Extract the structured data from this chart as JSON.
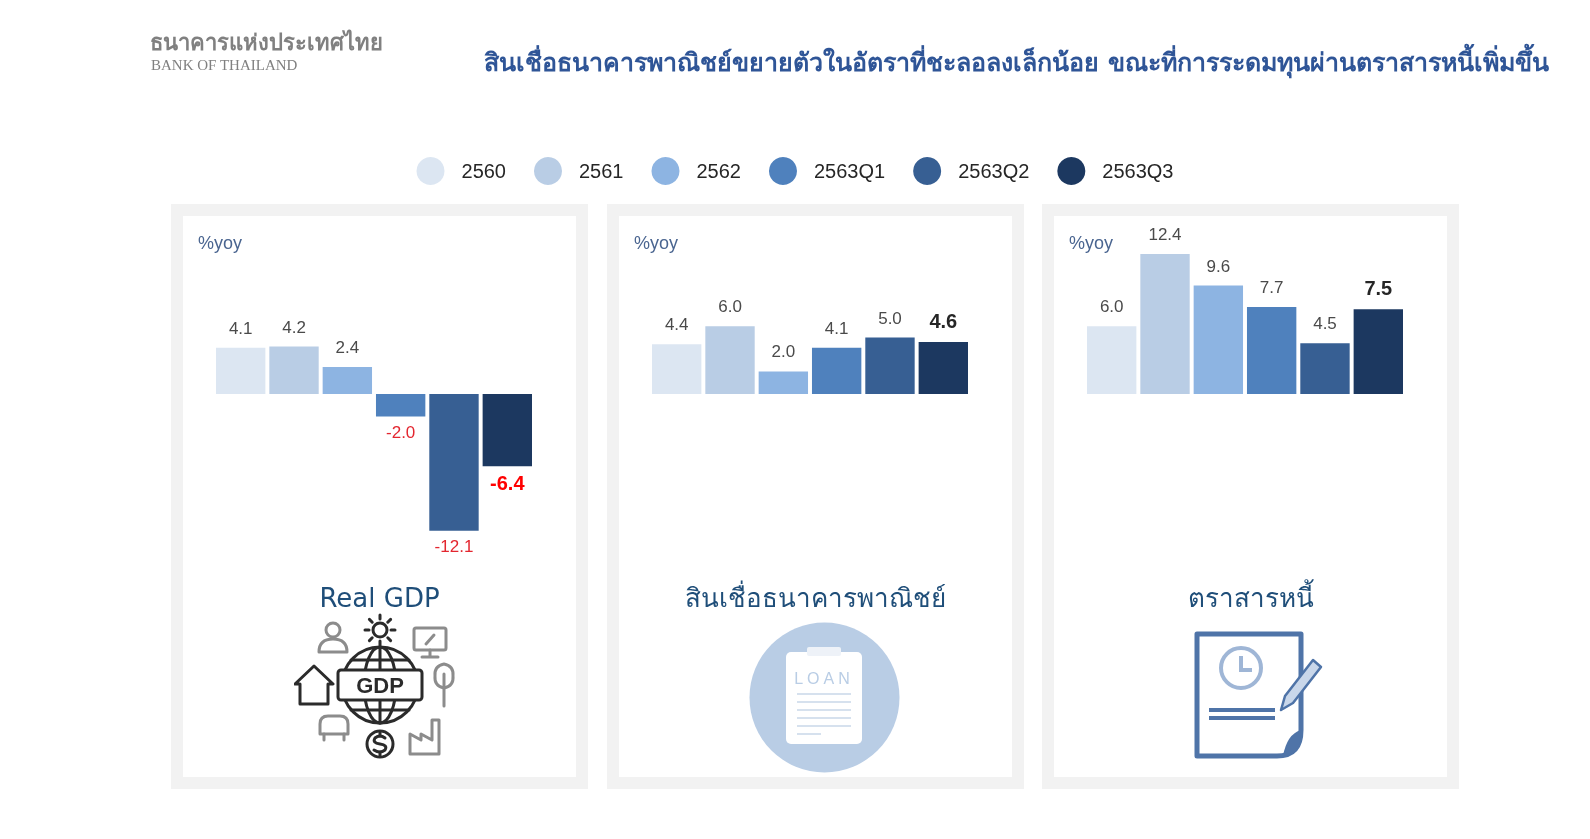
{
  "chart_data": [
    {
      "type": "bar",
      "title": "Real GDP",
      "ylabel": "%yoy",
      "legend": "top",
      "tick_labels": false,
      "categories": [
        null
      ],
      "series": [
        {
          "name": "2560",
          "color": "#dce6f2",
          "values": [
            4.1
          ],
          "value_labels": [
            "4.1"
          ]
        },
        {
          "name": "2561",
          "color": "#b9cde5",
          "values": [
            4.2
          ],
          "value_labels": [
            "4.2"
          ]
        },
        {
          "name": "2562",
          "color": "#8db4e2",
          "values": [
            2.4
          ],
          "value_labels": [
            "2.4"
          ]
        },
        {
          "name": "2563Q1",
          "color": "#4f81bd",
          "values": [
            -2.0
          ],
          "value_labels": [
            "-2.0"
          ]
        },
        {
          "name": "2563Q2",
          "color": "#375f93",
          "values": [
            -12.1
          ],
          "value_labels": [
            "-12.1"
          ]
        },
        {
          "name": "2563Q3",
          "color": "#1c3860",
          "values": [
            -6.4
          ],
          "value_labels": [
            "-6.4"
          ]
        }
      ],
      "annotations": [
        "ธนาคารแห่งประเทศไทย",
        "BANK OF THAILAND",
        "สินเชื่อธนาคารพาณิชย์ขยายตัวในอัตราที่ชะลอลงเล็กน้อย ขณะที่การระดมทุนผ่านตราสารหนี้เพิ่มขึ้น",
        "GDP"
      ]
    },
    {
      "type": "bar",
      "title": "สินเชื่อธนาคารพาณิชย์",
      "ylabel": "%yoy",
      "tick_labels": false,
      "categories": [
        null
      ],
      "series": [
        {
          "name": "2560",
          "color": "#dce6f2",
          "values": [
            4.4
          ],
          "value_labels": [
            "4.4"
          ]
        },
        {
          "name": "2561",
          "color": "#b9cde5",
          "values": [
            6.0
          ],
          "value_labels": [
            "6.0"
          ]
        },
        {
          "name": "2562",
          "color": "#8db4e2",
          "values": [
            2.0
          ],
          "value_labels": [
            "2.0"
          ]
        },
        {
          "name": "2563Q1",
          "color": "#4f81bd",
          "values": [
            4.1
          ],
          "value_labels": [
            "4.1"
          ]
        },
        {
          "name": "2563Q2",
          "color": "#375f93",
          "values": [
            5.0
          ],
          "value_labels": [
            "5.0"
          ]
        },
        {
          "name": "2563Q3",
          "color": "#1c3860",
          "values": [
            4.6
          ],
          "value_labels": [
            "4.6"
          ]
        }
      ],
      "annotations": [
        "LOAN"
      ]
    },
    {
      "type": "bar",
      "title": "ตราสารหนี้",
      "ylabel": "%yoy",
      "tick_labels": false,
      "categories": [
        null
      ],
      "series": [
        {
          "name": "2560",
          "color": "#dce6f2",
          "values": [
            6.0
          ],
          "value_labels": [
            "6.0"
          ]
        },
        {
          "name": "2561",
          "color": "#b9cde5",
          "values": [
            12.4
          ],
          "value_labels": [
            "12.4"
          ]
        },
        {
          "name": "2562",
          "color": "#8db4e2",
          "values": [
            9.6
          ],
          "value_labels": [
            "9.6"
          ]
        },
        {
          "name": "2563Q1",
          "color": "#4f81bd",
          "values": [
            7.7
          ],
          "value_labels": [
            "7.7"
          ]
        },
        {
          "name": "2563Q2",
          "color": "#375f93",
          "values": [
            4.5
          ],
          "value_labels": [
            "4.5"
          ]
        },
        {
          "name": "2563Q3",
          "color": "#1c3860",
          "values": [
            7.5
          ],
          "value_labels": [
            "7.5"
          ]
        }
      ]
    }
  ]
}
